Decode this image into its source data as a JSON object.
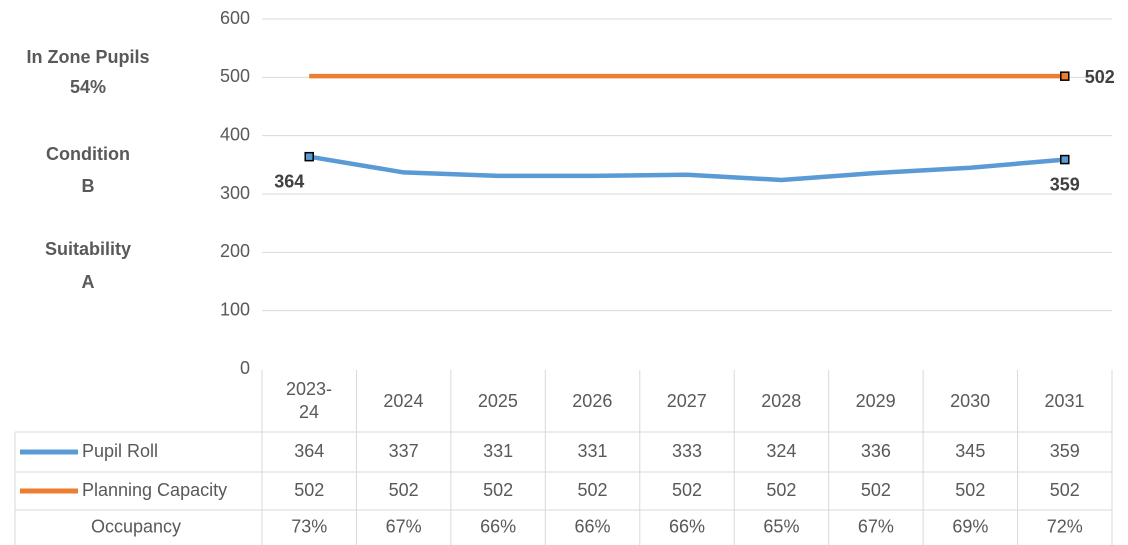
{
  "chart_data": {
    "type": "line",
    "categories": [
      "2023-24",
      "2024",
      "2025",
      "2026",
      "2027",
      "2028",
      "2029",
      "2030",
      "2031"
    ],
    "series": [
      {
        "name": "Pupil Roll",
        "color": "#5b9bd5",
        "values": [
          364,
          337,
          331,
          331,
          333,
          324,
          336,
          345,
          359
        ],
        "data_labels": [
          0,
          8
        ]
      },
      {
        "name": "Planning Capacity",
        "color": "#ed7d31",
        "values": [
          502,
          502,
          502,
          502,
          502,
          502,
          502,
          502,
          502
        ],
        "data_labels": [
          8
        ]
      }
    ],
    "occupancy": {
      "name": "Occupancy",
      "values": [
        73,
        67,
        66,
        66,
        66,
        65,
        67,
        69,
        72
      ],
      "value_labels": [
        "73%",
        "67%",
        "66%",
        "66%",
        "66%",
        "65%",
        "67%",
        "69%",
        "72%"
      ]
    },
    "ylim": [
      0,
      600
    ],
    "yticks": [
      0,
      100,
      200,
      300,
      400,
      500,
      600
    ],
    "grid": true
  },
  "side_panel": [
    {
      "label": "In Zone Pupils",
      "value": "54%"
    },
    {
      "label": "Condition",
      "value": "B"
    },
    {
      "label": "Suitability",
      "value": "A"
    }
  ]
}
